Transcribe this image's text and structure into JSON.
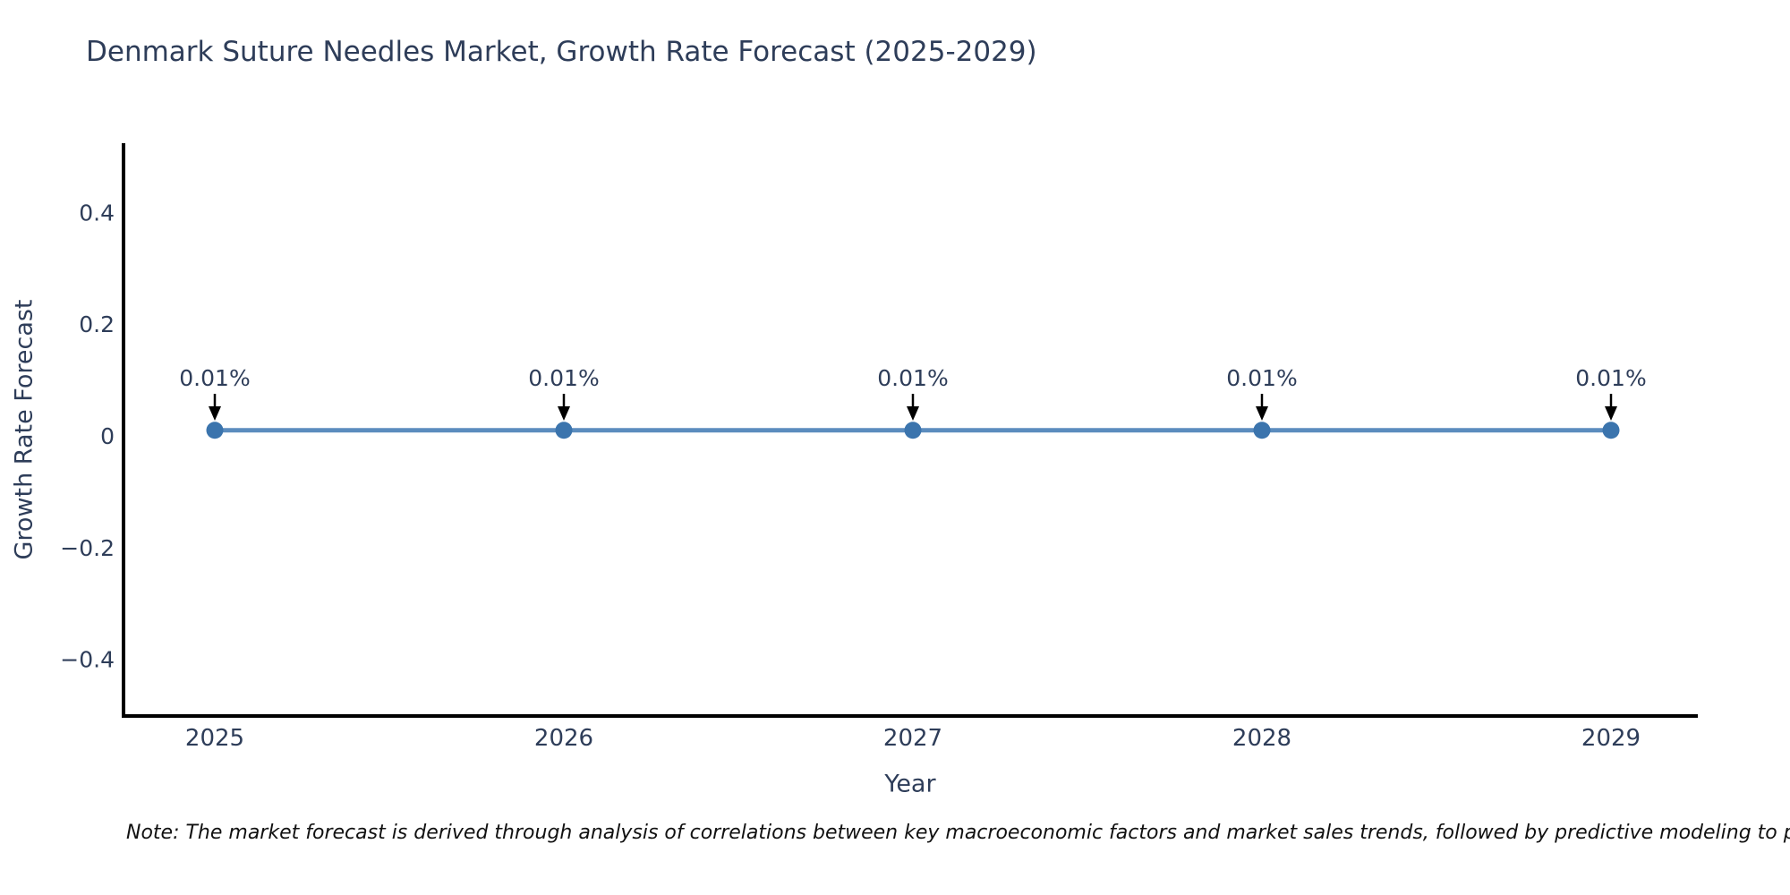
{
  "title": "Denmark Suture Needles Market, Growth Rate Forecast (2025-2029)",
  "note": "Note: The market forecast is derived through analysis of correlations between key macroeconomic factors and market sales trends, followed by predictive modeling to project future sa",
  "chart_data": {
    "type": "line",
    "title": "Denmark Suture Needles Market, Growth Rate Forecast (2025-2029)",
    "x": [
      2025,
      2026,
      2027,
      2028,
      2029
    ],
    "xticks": [
      "2025",
      "2026",
      "2027",
      "2028",
      "2029"
    ],
    "series": [
      {
        "name": "Growth Rate Forecast",
        "values": [
          0.01,
          0.01,
          0.01,
          0.01,
          0.01
        ]
      }
    ],
    "point_labels": [
      "0.01%",
      "0.01%",
      "0.01%",
      "0.01%",
      "0.01%"
    ],
    "xlabel": "Year",
    "ylabel": "Growth Rate Forecast",
    "yticks": [
      0.4,
      0.2,
      0,
      -0.2,
      -0.4
    ],
    "ytick_labels": [
      "0.4",
      "0.2",
      "0",
      "−0.2",
      "−0.4"
    ],
    "ylim": [
      -0.5,
      0.52
    ],
    "grid": false,
    "legend": false,
    "colors": {
      "line": "#5b8cbe",
      "marker": "#3b74ad",
      "axis": "#000000",
      "text": "#2e3d59",
      "arrow": "#000000",
      "note_text": "#111111"
    }
  }
}
